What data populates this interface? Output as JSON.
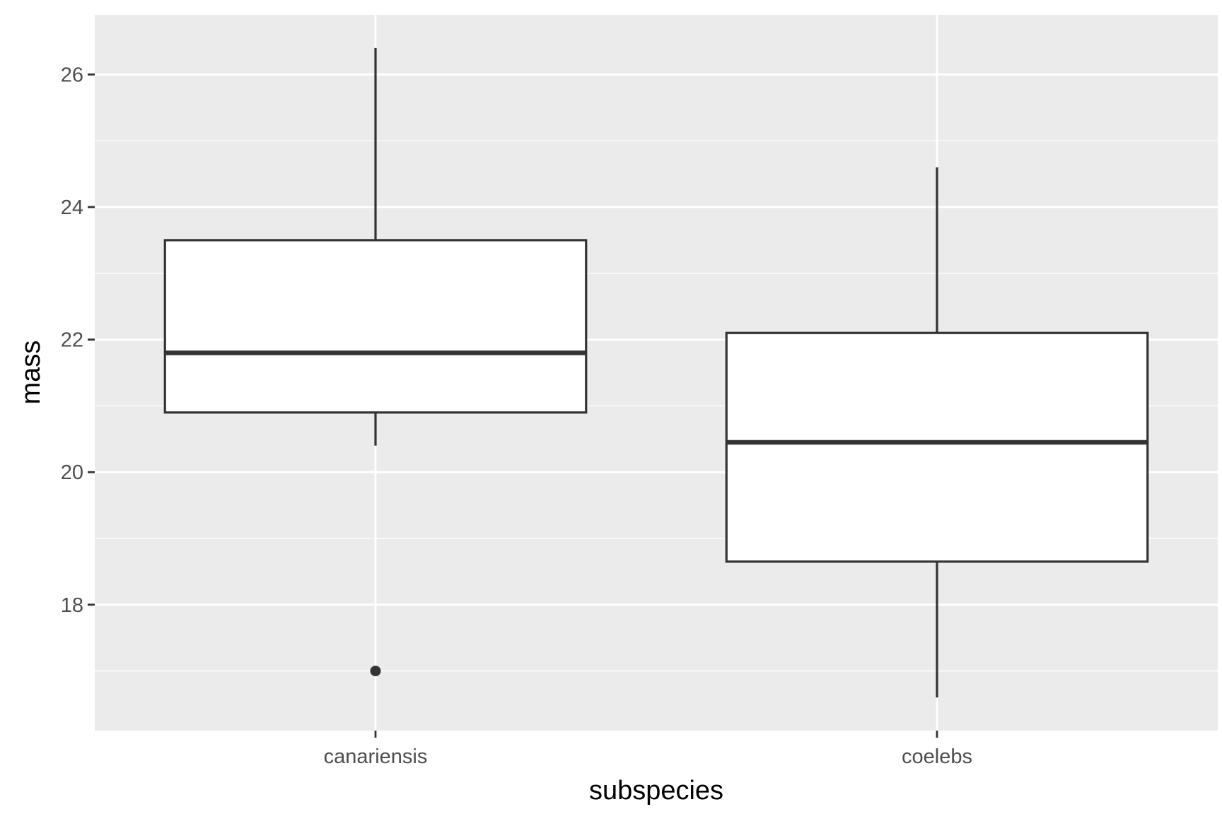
{
  "chart_data": {
    "type": "boxplot",
    "title": "",
    "xlabel": "subspecies",
    "ylabel": "mass",
    "ylim": [
      16.1,
      26.9
    ],
    "yticks": [
      18,
      20,
      22,
      24,
      26
    ],
    "ytick_labels": [
      "18",
      "20",
      "22",
      "24",
      "26"
    ],
    "grid": true,
    "categories": [
      "canariensis",
      "coelebs"
    ],
    "boxes": [
      {
        "category": "canariensis",
        "whisker_low": 20.4,
        "q1": 20.9,
        "median": 21.8,
        "q3": 23.5,
        "whisker_high": 26.4,
        "outliers": [
          17.0
        ]
      },
      {
        "category": "coelebs",
        "whisker_low": 16.6,
        "q1": 18.65,
        "median": 20.45,
        "q3": 22.1,
        "whisker_high": 24.6,
        "outliers": []
      }
    ],
    "colors": {
      "panel": "#ebebeb",
      "grid": "#ffffff",
      "box_fill": "#ffffff",
      "box_stroke": "#333333",
      "tick": "#333333"
    }
  }
}
